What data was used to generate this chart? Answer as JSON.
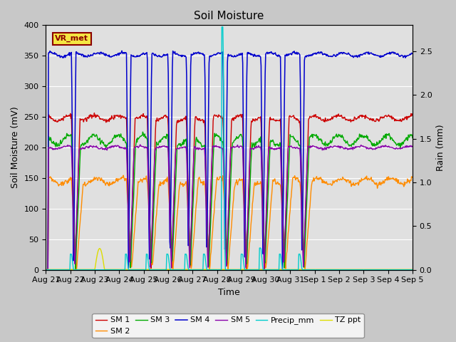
{
  "title": "Soil Moisture",
  "xlabel": "Time",
  "ylabel_left": "Soil Moisture (mV)",
  "ylabel_right": "Rain (mm)",
  "ylim_left": [
    0,
    400
  ],
  "ylim_right": [
    0,
    2.8
  ],
  "fig_facecolor": "#c8c8c8",
  "plot_facecolor": "#e0e0e0",
  "legend_label": "VR_met",
  "series": {
    "SM1": {
      "color": "#cc0000",
      "label": "SM 1"
    },
    "SM2": {
      "color": "#ff8c00",
      "label": "SM 2"
    },
    "SM3": {
      "color": "#00aa00",
      "label": "SM 3"
    },
    "SM4": {
      "color": "#0000cc",
      "label": "SM 4"
    },
    "SM5": {
      "color": "#8800aa",
      "label": "SM 5"
    },
    "Precip": {
      "color": "#00cccc",
      "label": "Precip_mm"
    },
    "TZppt": {
      "color": "#dddd00",
      "label": "TZ ppt"
    }
  },
  "x_tick_labels": [
    "Aug 21",
    "Aug 22",
    "Aug 23",
    "Aug 24",
    "Aug 25",
    "Aug 26",
    "Aug 27",
    "Aug 28",
    "Aug 29",
    "Aug 30",
    "Aug 31",
    "Sep 1",
    "Sep 2",
    "Sep 3",
    "Sep 4",
    "Sep 5"
  ],
  "drop_days": [
    1.05,
    3.3,
    4.15,
    5.0,
    5.75,
    6.5,
    7.25,
    8.05,
    8.8,
    9.6,
    10.4
  ],
  "precip_amounts": [
    0.18,
    0.18,
    0.18,
    0.18,
    0.18,
    0.18,
    2.78,
    0.18,
    0.25,
    0.18,
    0.18
  ],
  "sm1_base": 248,
  "sm1_low": 0,
  "sm2_base": 145,
  "sm2_low": 0,
  "sm3_base": 212,
  "sm3_low": 0,
  "sm4_base": 352,
  "sm4_low": 0,
  "sm5_base": 200,
  "sm5_low": 0
}
